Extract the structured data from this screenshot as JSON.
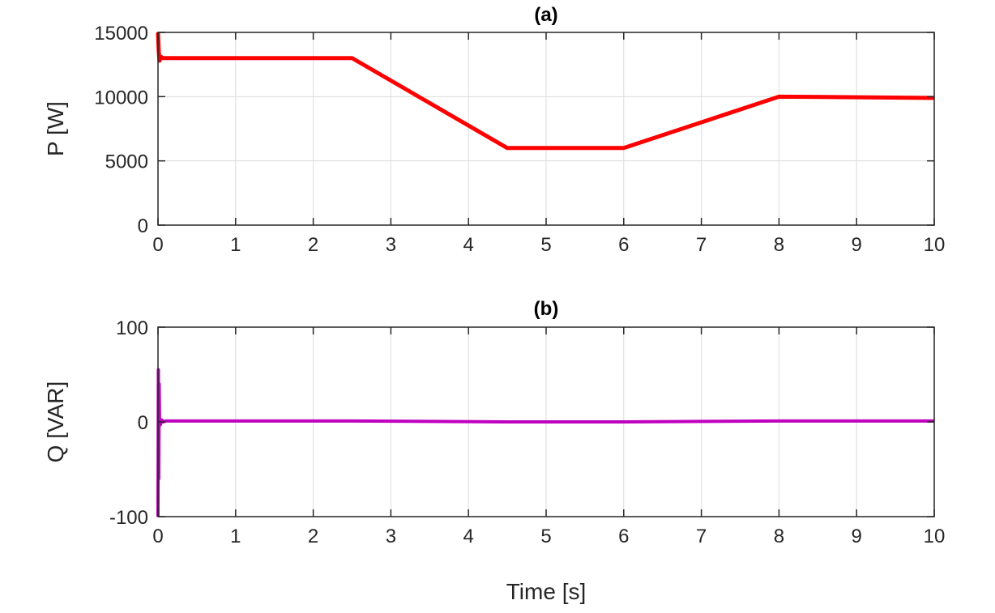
{
  "chart_data": [
    {
      "type": "line",
      "title": "(a)",
      "xlabel": "",
      "ylabel": "P [W]",
      "xlim": [
        0,
        10
      ],
      "ylim": [
        0,
        15000
      ],
      "xticks": [
        0,
        1,
        2,
        3,
        4,
        5,
        6,
        7,
        8,
        9,
        10
      ],
      "yticks": [
        0,
        5000,
        10000,
        15000
      ],
      "grid": true,
      "color": "#ff0000",
      "series": [
        {
          "x": [
            0,
            0.01,
            0.02,
            0.04,
            0.06,
            2.5,
            4.5,
            6.0,
            8.0,
            10.0
          ],
          "y": [
            15000,
            13500,
            12800,
            13100,
            13000,
            13000,
            6000,
            6000,
            10000,
            9900
          ]
        }
      ]
    },
    {
      "type": "line",
      "title": "(b)",
      "xlabel": "Time [s]",
      "ylabel": "Q [VAR]",
      "xlim": [
        0,
        10
      ],
      "ylim": [
        -100,
        100
      ],
      "xticks": [
        0,
        1,
        2,
        3,
        4,
        5,
        6,
        7,
        8,
        9,
        10
      ],
      "yticks": [
        -100,
        0,
        100
      ],
      "grid": true,
      "color": "#bf00bf",
      "series": [
        {
          "x": [
            0,
            0.005,
            0.01,
            0.015,
            0.02,
            0.03,
            0.05,
            0.07,
            0.1,
            2.5,
            4.5,
            6.0,
            8.0,
            10.0
          ],
          "y": [
            -100,
            55,
            -60,
            40,
            0,
            -3,
            2,
            0,
            1,
            1,
            0,
            0,
            1,
            1
          ]
        }
      ]
    }
  ]
}
